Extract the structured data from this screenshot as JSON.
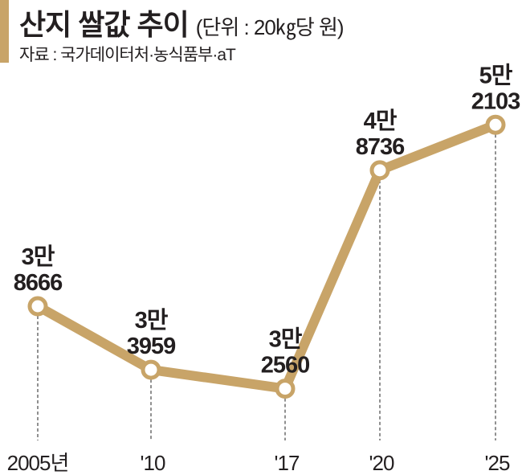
{
  "chart_data": {
    "type": "line",
    "title": "산지 쌀값 추이",
    "unit": "(단위 : 20㎏당 원)",
    "source": "자료 : 국가데이터처·농식품부·aT",
    "categories": [
      "2005년",
      "'10",
      "'17",
      "'20",
      "'25"
    ],
    "values": [
      38666,
      33959,
      32560,
      48736,
      52103
    ],
    "data_labels": [
      {
        "top": "3만",
        "bottom": "8666"
      },
      {
        "top": "3만",
        "bottom": "3959"
      },
      {
        "top": "3만",
        "bottom": "2560"
      },
      {
        "top": "4만",
        "bottom": "8736"
      },
      {
        "top": "5만",
        "bottom": "2103"
      }
    ],
    "grid": false,
    "colors": {
      "line": "#c8a468",
      "text": "#231f20",
      "dash": "#555555"
    }
  }
}
